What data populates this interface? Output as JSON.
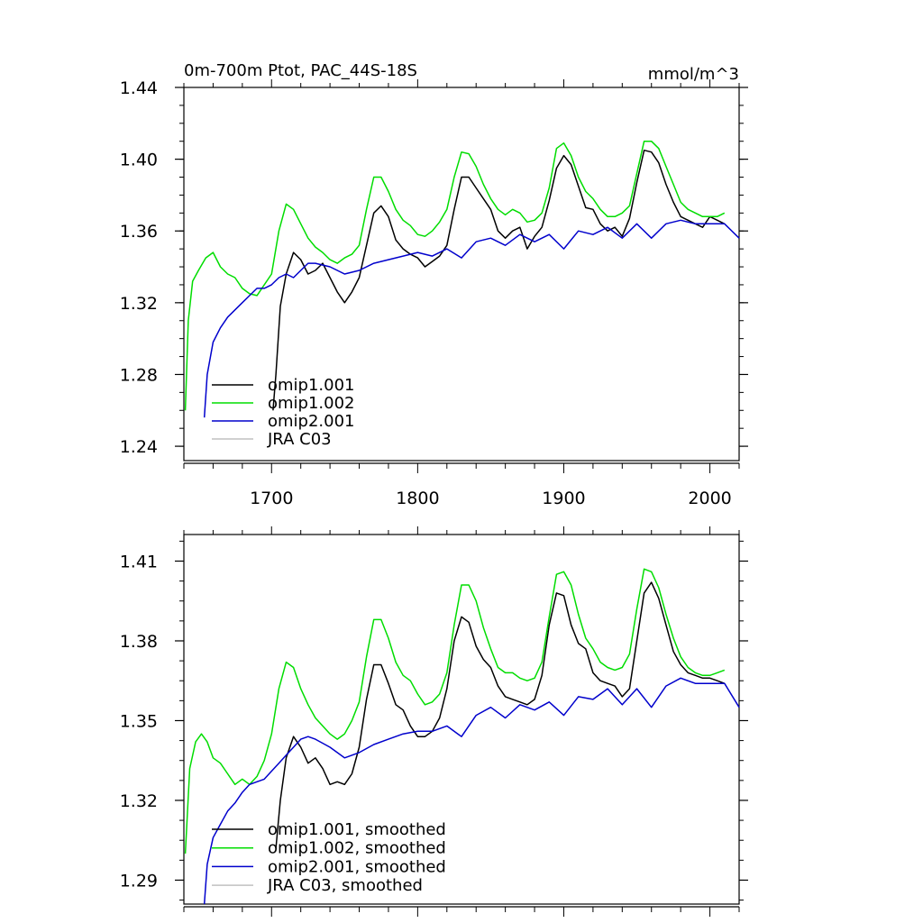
{
  "figure": {
    "title_left": "0m-700m Ptot, PAC_44S-18S",
    "title_right": "mmol/m^3"
  },
  "chart_data": [
    {
      "type": "line",
      "id": "raw",
      "title": "0m-700m Ptot, PAC_44S-18S",
      "units": "mmol/m^3",
      "xlabel": "",
      "ylabel": "",
      "xlim": [
        1640,
        2020
      ],
      "ylim": [
        1.232,
        1.44
      ],
      "y_ticks": [
        1.24,
        1.28,
        1.32,
        1.36,
        1.4,
        1.44
      ],
      "y_tick_labels": [
        "1.24",
        "1.28",
        "1.32",
        "1.36",
        "1.40",
        "1.44"
      ],
      "x_ticks": [
        1700,
        1800,
        1900,
        2000
      ],
      "x_tick_labels": [
        "1700",
        "1800",
        "1900",
        "2000"
      ],
      "legend_position": "bottom-left",
      "legend": [
        "omip1.001",
        "omip1.002",
        "omip2.001",
        "JRA C03"
      ],
      "series": [
        {
          "name": "omip1.001",
          "color": "#000000",
          "x": [
            1701,
            1703,
            1706,
            1710,
            1715,
            1720,
            1725,
            1730,
            1735,
            1740,
            1745,
            1750,
            1755,
            1760,
            1765,
            1770,
            1775,
            1780,
            1785,
            1790,
            1795,
            1800,
            1805,
            1810,
            1815,
            1820,
            1825,
            1830,
            1835,
            1840,
            1845,
            1850,
            1855,
            1860,
            1865,
            1870,
            1875,
            1880,
            1885,
            1890,
            1895,
            1900,
            1905,
            1910,
            1915,
            1920,
            1925,
            1930,
            1935,
            1940,
            1945,
            1950,
            1955,
            1960,
            1965,
            1970,
            1975,
            1980,
            1985,
            1990,
            1995,
            2000,
            2005,
            2010
          ],
          "y": [
            1.26,
            1.28,
            1.318,
            1.336,
            1.348,
            1.344,
            1.336,
            1.338,
            1.342,
            1.334,
            1.326,
            1.32,
            1.326,
            1.334,
            1.352,
            1.37,
            1.374,
            1.368,
            1.355,
            1.35,
            1.347,
            1.345,
            1.34,
            1.343,
            1.346,
            1.352,
            1.372,
            1.39,
            1.39,
            1.384,
            1.378,
            1.372,
            1.36,
            1.356,
            1.36,
            1.362,
            1.35,
            1.357,
            1.362,
            1.377,
            1.395,
            1.402,
            1.397,
            1.385,
            1.373,
            1.372,
            1.364,
            1.36,
            1.362,
            1.357,
            1.367,
            1.387,
            1.405,
            1.404,
            1.398,
            1.386,
            1.376,
            1.368,
            1.366,
            1.364,
            1.362,
            1.368,
            1.366,
            1.364
          ]
        },
        {
          "name": "omip1.002",
          "color": "#00dd00",
          "x": [
            1641,
            1643,
            1646,
            1650,
            1655,
            1660,
            1665,
            1670,
            1675,
            1680,
            1685,
            1690,
            1695,
            1700,
            1705,
            1710,
            1715,
            1720,
            1725,
            1730,
            1735,
            1740,
            1745,
            1750,
            1755,
            1760,
            1765,
            1770,
            1775,
            1780,
            1785,
            1790,
            1795,
            1800,
            1805,
            1810,
            1815,
            1820,
            1825,
            1830,
            1835,
            1840,
            1845,
            1850,
            1855,
            1860,
            1865,
            1870,
            1875,
            1880,
            1885,
            1890,
            1895,
            1900,
            1905,
            1910,
            1915,
            1920,
            1925,
            1930,
            1935,
            1940,
            1945,
            1950,
            1955,
            1960,
            1965,
            1970,
            1975,
            1980,
            1985,
            1990,
            1995,
            2000,
            2005,
            2010
          ],
          "y": [
            1.26,
            1.31,
            1.332,
            1.338,
            1.345,
            1.348,
            1.34,
            1.336,
            1.334,
            1.328,
            1.325,
            1.324,
            1.33,
            1.336,
            1.36,
            1.375,
            1.372,
            1.364,
            1.356,
            1.351,
            1.348,
            1.344,
            1.342,
            1.345,
            1.347,
            1.352,
            1.372,
            1.39,
            1.39,
            1.382,
            1.372,
            1.366,
            1.363,
            1.358,
            1.357,
            1.36,
            1.365,
            1.372,
            1.39,
            1.404,
            1.403,
            1.396,
            1.386,
            1.378,
            1.372,
            1.369,
            1.372,
            1.37,
            1.365,
            1.366,
            1.37,
            1.384,
            1.406,
            1.409,
            1.402,
            1.39,
            1.382,
            1.378,
            1.372,
            1.368,
            1.368,
            1.37,
            1.374,
            1.392,
            1.41,
            1.41,
            1.406,
            1.396,
            1.386,
            1.376,
            1.372,
            1.37,
            1.368,
            1.368,
            1.368,
            1.37
          ]
        },
        {
          "name": "omip2.001",
          "color": "#0000cc",
          "x": [
            1654,
            1656,
            1660,
            1665,
            1670,
            1675,
            1680,
            1685,
            1690,
            1695,
            1700,
            1705,
            1710,
            1715,
            1720,
            1725,
            1730,
            1740,
            1750,
            1760,
            1770,
            1780,
            1790,
            1800,
            1810,
            1820,
            1830,
            1840,
            1850,
            1860,
            1870,
            1880,
            1890,
            1900,
            1910,
            1920,
            1930,
            1940,
            1950,
            1960,
            1970,
            1980,
            1990,
            2000,
            2010,
            2020
          ],
          "y": [
            1.256,
            1.28,
            1.298,
            1.306,
            1.312,
            1.316,
            1.32,
            1.324,
            1.328,
            1.328,
            1.33,
            1.334,
            1.336,
            1.334,
            1.338,
            1.342,
            1.342,
            1.34,
            1.336,
            1.338,
            1.342,
            1.344,
            1.346,
            1.348,
            1.346,
            1.35,
            1.345,
            1.354,
            1.356,
            1.352,
            1.358,
            1.354,
            1.358,
            1.35,
            1.36,
            1.358,
            1.362,
            1.356,
            1.364,
            1.356,
            1.364,
            1.366,
            1.364,
            1.364,
            1.364,
            1.356
          ]
        },
        {
          "name": "JRA C03",
          "color": "#c0c0c0",
          "x": [],
          "y": []
        }
      ]
    },
    {
      "type": "line",
      "id": "smoothed",
      "title": "",
      "xlabel": "",
      "ylabel": "",
      "xlim": [
        1640,
        2020
      ],
      "ylim": [
        1.281,
        1.42
      ],
      "y_ticks": [
        1.29,
        1.32,
        1.35,
        1.38,
        1.41
      ],
      "y_tick_labels": [
        "1.29",
        "1.32",
        "1.35",
        "1.38",
        "1.41"
      ],
      "x_ticks": [
        1700,
        1800,
        1900,
        2000
      ],
      "x_tick_labels": [],
      "legend_position": "bottom-left",
      "legend": [
        "omip1.001, smoothed",
        "omip1.002, smoothed",
        "omip2.001, smoothed",
        "JRA C03, smoothed"
      ],
      "series": [
        {
          "name": "omip1.001, smoothed",
          "color": "#000000",
          "x": [
            1703,
            1706,
            1710,
            1715,
            1720,
            1725,
            1730,
            1735,
            1740,
            1745,
            1750,
            1755,
            1760,
            1765,
            1770,
            1775,
            1780,
            1785,
            1790,
            1795,
            1800,
            1805,
            1810,
            1815,
            1820,
            1825,
            1830,
            1835,
            1840,
            1845,
            1850,
            1855,
            1860,
            1865,
            1870,
            1875,
            1880,
            1885,
            1890,
            1895,
            1900,
            1905,
            1910,
            1915,
            1920,
            1925,
            1930,
            1935,
            1940,
            1945,
            1950,
            1955,
            1960,
            1965,
            1970,
            1975,
            1980,
            1985,
            1990,
            1995,
            2000,
            2005,
            2010
          ],
          "y": [
            1.302,
            1.32,
            1.336,
            1.344,
            1.34,
            1.334,
            1.336,
            1.332,
            1.326,
            1.327,
            1.326,
            1.33,
            1.34,
            1.358,
            1.371,
            1.371,
            1.364,
            1.356,
            1.354,
            1.348,
            1.344,
            1.344,
            1.346,
            1.351,
            1.362,
            1.38,
            1.389,
            1.387,
            1.378,
            1.373,
            1.37,
            1.363,
            1.359,
            1.358,
            1.357,
            1.356,
            1.358,
            1.367,
            1.386,
            1.398,
            1.397,
            1.386,
            1.379,
            1.377,
            1.368,
            1.365,
            1.364,
            1.363,
            1.359,
            1.362,
            1.38,
            1.398,
            1.402,
            1.396,
            1.386,
            1.376,
            1.371,
            1.368,
            1.367,
            1.366,
            1.366,
            1.365,
            1.364
          ]
        },
        {
          "name": "omip1.002, smoothed",
          "color": "#00dd00",
          "x": [
            1641,
            1644,
            1648,
            1652,
            1656,
            1660,
            1665,
            1670,
            1675,
            1680,
            1685,
            1690,
            1695,
            1700,
            1705,
            1710,
            1715,
            1720,
            1725,
            1730,
            1735,
            1740,
            1745,
            1750,
            1755,
            1760,
            1765,
            1770,
            1775,
            1780,
            1785,
            1790,
            1795,
            1800,
            1805,
            1810,
            1815,
            1820,
            1825,
            1830,
            1835,
            1840,
            1845,
            1850,
            1855,
            1860,
            1865,
            1870,
            1875,
            1880,
            1885,
            1890,
            1895,
            1900,
            1905,
            1910,
            1915,
            1920,
            1925,
            1930,
            1935,
            1940,
            1945,
            1950,
            1955,
            1960,
            1965,
            1970,
            1975,
            1980,
            1985,
            1990,
            1995,
            2000,
            2005,
            2010
          ],
          "y": [
            1.3,
            1.332,
            1.342,
            1.345,
            1.342,
            1.336,
            1.334,
            1.33,
            1.326,
            1.328,
            1.326,
            1.329,
            1.335,
            1.345,
            1.362,
            1.372,
            1.37,
            1.362,
            1.356,
            1.351,
            1.348,
            1.345,
            1.343,
            1.345,
            1.35,
            1.357,
            1.374,
            1.388,
            1.388,
            1.381,
            1.372,
            1.367,
            1.365,
            1.36,
            1.356,
            1.357,
            1.36,
            1.368,
            1.386,
            1.401,
            1.401,
            1.395,
            1.385,
            1.377,
            1.37,
            1.368,
            1.368,
            1.366,
            1.365,
            1.366,
            1.372,
            1.389,
            1.405,
            1.406,
            1.401,
            1.39,
            1.381,
            1.377,
            1.372,
            1.37,
            1.369,
            1.37,
            1.375,
            1.392,
            1.407,
            1.406,
            1.4,
            1.39,
            1.381,
            1.374,
            1.37,
            1.368,
            1.367,
            1.367,
            1.368,
            1.369
          ]
        },
        {
          "name": "omip2.001, smoothed",
          "color": "#0000cc",
          "x": [
            1654,
            1656,
            1660,
            1665,
            1670,
            1675,
            1680,
            1685,
            1690,
            1695,
            1700,
            1705,
            1710,
            1715,
            1720,
            1725,
            1730,
            1740,
            1750,
            1760,
            1770,
            1780,
            1790,
            1800,
            1810,
            1820,
            1830,
            1840,
            1850,
            1860,
            1870,
            1880,
            1890,
            1900,
            1910,
            1920,
            1930,
            1940,
            1950,
            1960,
            1970,
            1980,
            1990,
            2000,
            2010,
            2020
          ],
          "y": [
            1.281,
            1.296,
            1.306,
            1.311,
            1.316,
            1.319,
            1.323,
            1.326,
            1.327,
            1.328,
            1.331,
            1.334,
            1.337,
            1.34,
            1.343,
            1.344,
            1.343,
            1.34,
            1.336,
            1.338,
            1.341,
            1.343,
            1.345,
            1.346,
            1.346,
            1.348,
            1.344,
            1.352,
            1.355,
            1.351,
            1.356,
            1.354,
            1.357,
            1.352,
            1.359,
            1.358,
            1.362,
            1.356,
            1.362,
            1.355,
            1.363,
            1.366,
            1.364,
            1.364,
            1.364,
            1.355
          ]
        },
        {
          "name": "JRA C03, smoothed",
          "color": "#c0c0c0",
          "x": [],
          "y": []
        }
      ]
    }
  ]
}
